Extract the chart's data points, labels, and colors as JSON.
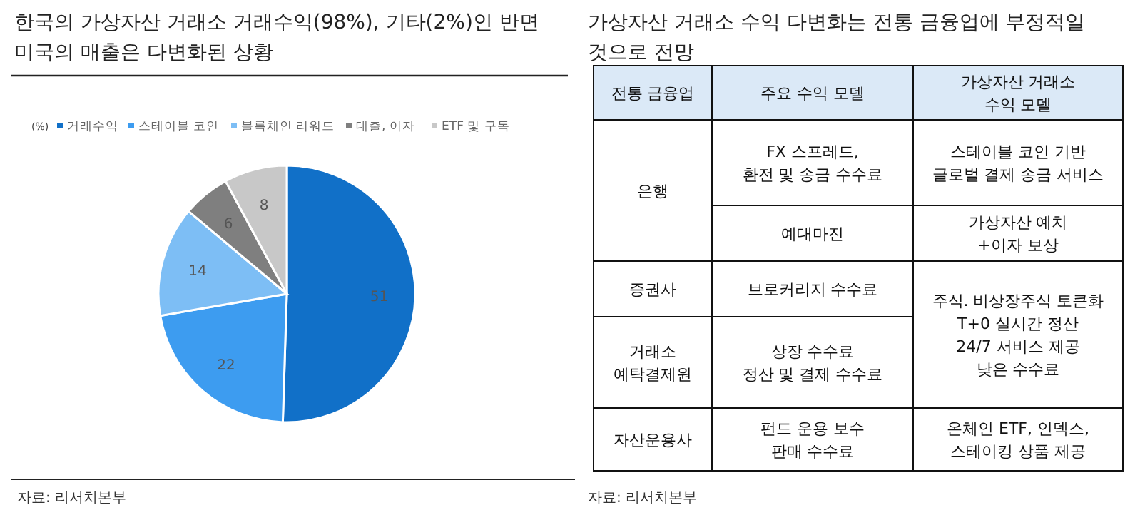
{
  "chart_data": [
    {
      "type": "pie",
      "title": "한국의 가상자산 거래소 거래수익(98%), 기타(2%)인 반면 미국의 매출은 다변화된 상황",
      "legend_title": "(%)",
      "categories": [
        "거래수익",
        "스테이블 코인",
        "블록체인 리워드",
        "대출, 이자",
        "ETF 및 구독"
      ],
      "values": [
        51,
        22,
        14,
        6,
        8
      ],
      "colors": [
        "#1170c8",
        "#3d9cf0",
        "#7dbef5",
        "#7f7f7f",
        "#c8c8c8"
      ],
      "data_labels": true,
      "legend": "top",
      "annotations": [
        "자료: 리서치본부"
      ]
    },
    {
      "type": "other",
      "title": "가상자산 거래소 수익 다변화는 전통 금융업에 부정적일 것으로 전망",
      "annotations": [
        "전통 금융업",
        "주요 수익 모델",
        "가상자산 거래소\n수익 모델",
        "은행",
        "FX 스프레드,\n환전 및 송금 수수료",
        "스테이블 코인 기반\n글로벌 결제 송금 서비스",
        "예대마진",
        "가상자산 예치\n+이자 보상",
        "증권사",
        "브로커리지 수수료",
        "주식. 비상장주식 토큰화\nT+0 실시간 정산\n24/7 서비스 제공\n낮은 수수료",
        "거래소\n예탁결제원",
        "상장 수수료\n정산 및 결제 수수료",
        "자산운용사",
        "펀드 운용 보수\n판매 수수료",
        "온체인 ETF, 인덱스,\n스테이킹 상품 제공",
        "자료: 리서치본부"
      ]
    }
  ]
}
